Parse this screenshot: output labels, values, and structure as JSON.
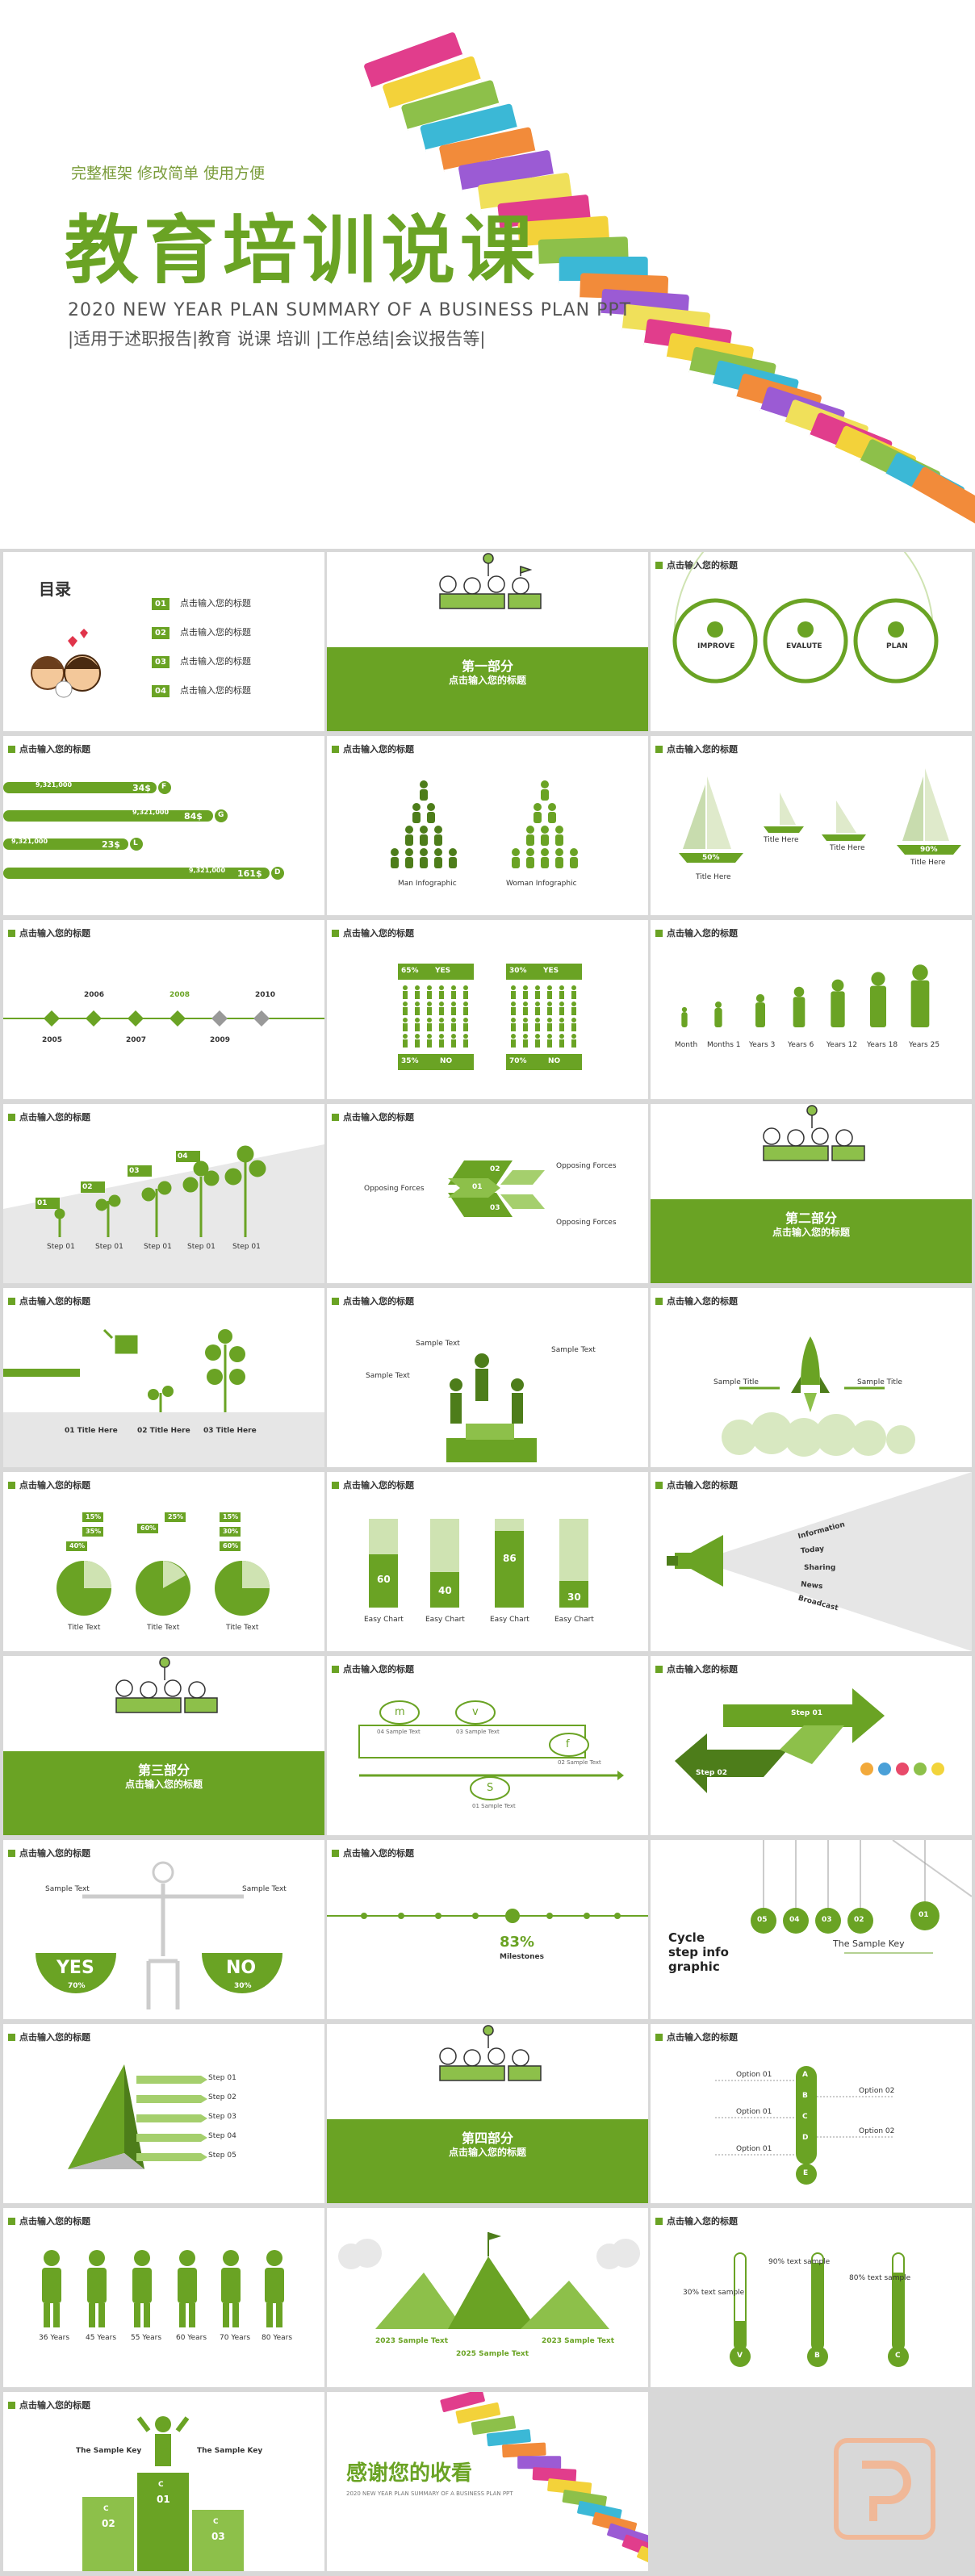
{
  "cover": {
    "tagline": "完整框架 修改简单 使用方便",
    "title": "教育培训说课",
    "subtitle_en": "2020 NEW YEAR PLAN SUMMARY OF A BUSINESS PLAN PPT",
    "subtitle_cn": "|适用于述职报告|教育 说课 培训 |工作总结|会议报告等|"
  },
  "common": {
    "slide_header": "点击输入您的标题",
    "section_sub": "点击输入您的标题"
  },
  "toc": {
    "title": "目录",
    "items": [
      {
        "num": "01",
        "label": "点击输入您的标题"
      },
      {
        "num": "02",
        "label": "点击输入您的标题"
      },
      {
        "num": "03",
        "label": "点击输入您的标题"
      },
      {
        "num": "04",
        "label": "点击输入您的标题"
      }
    ]
  },
  "sections": {
    "one": "第一部分",
    "two": "第二部分",
    "three": "第三部分",
    "four": "第四部分"
  },
  "circles": {
    "items": [
      "IMPROVE",
      "EVALUTE",
      "PLAN"
    ]
  },
  "bars": {
    "items": [
      {
        "value": "9,321,000",
        "sub": "Facebook Subscribes",
        "amount": "34$",
        "letter": "F"
      },
      {
        "value": "9,321,000",
        "sub": "Google Plus Subscribes",
        "amount": "84$",
        "letter": "G"
      },
      {
        "value": "9,321,000",
        "sub": "Twitter Subscribes",
        "amount": "23$",
        "letter": "L"
      },
      {
        "value": "9,321,000",
        "sub": "Dribbble Subscribes",
        "amount": "161$",
        "letter": "D"
      }
    ]
  },
  "people_infographic": {
    "man": "Man Infographic",
    "woman": "Woman Infographic"
  },
  "sails": {
    "percents": [
      "50%",
      "90%"
    ],
    "titles": [
      "Title Here",
      "Title Here",
      "Title Here",
      "Title Here"
    ]
  },
  "timeline": {
    "years_top": [
      "2006",
      "2008",
      "2010"
    ],
    "years_bottom": [
      "2005",
      "2007",
      "2009"
    ]
  },
  "percent_people": {
    "a_top": "65%",
    "a_yes": "YES",
    "a_bottom": "35%",
    "a_no": "NO",
    "b_top": "30%",
    "b_yes": "YES",
    "b_bottom": "70%",
    "b_no": "NO"
  },
  "growth": {
    "labels": [
      "Month",
      "Months 1",
      "Years 3",
      "Years 6",
      "Years 12",
      "Years 18",
      "Years 25"
    ]
  },
  "steps_trees": {
    "labels": [
      "Step 01",
      "Step 01",
      "Step 01",
      "Step 01",
      "Step 01"
    ],
    "tags": [
      "01",
      "02",
      "03",
      "04"
    ]
  },
  "arrows": {
    "left": "Opposing Forces",
    "r1": "Opposing Forces",
    "r2": "Opposing Forces",
    "n1": "01",
    "n2": "02",
    "n3": "03"
  },
  "watering": {
    "labels": [
      "01 Title Here",
      "02 Title Here",
      "03 Title Here"
    ]
  },
  "podium_people": {
    "labels": [
      "Sample Text",
      "Sample Text",
      "Sample Text"
    ]
  },
  "rocket": {
    "left": "Sample Title",
    "right": "Sample Title"
  },
  "pies": {
    "group1": [
      "15%",
      "35%",
      "40%"
    ],
    "group2": [
      "60%",
      "25%"
    ],
    "group3": [
      "15%",
      "30%",
      "60%"
    ],
    "title": "Title Text"
  },
  "columns": {
    "values": [
      "60",
      "40",
      "86",
      "30"
    ],
    "label": "Easy Chart"
  },
  "megaphone": {
    "items": [
      "Information",
      "Today",
      "Sharing",
      "News",
      "Broadcast"
    ]
  },
  "cycle_flow": {
    "nodes": [
      "m",
      "v",
      "f",
      "S"
    ],
    "labels": [
      "04 Sample Text",
      "03 Sample Text",
      "02 Sample Text",
      "01 Sample Text"
    ]
  },
  "big_arrows": {
    "step1": "Step 01",
    "step2": "Step 02"
  },
  "scale": {
    "left": "Sample Text",
    "right": "Sample Text",
    "yes": "YES",
    "no": "NO",
    "yes_pct": "70%",
    "no_pct": "30%"
  },
  "process_line": {
    "pct": "83%",
    "word": "Milestones"
  },
  "cycle_step": {
    "title": "Cycle step info graphic",
    "key": "The Sample Key",
    "nums": [
      "05",
      "04",
      "03",
      "02",
      "01"
    ]
  },
  "pyramid": {
    "steps": [
      "Step 01",
      "Step 02",
      "Step 03",
      "Step 04",
      "Step 05"
    ]
  },
  "abcde": {
    "letters": [
      "A",
      "B",
      "C",
      "D",
      "E"
    ],
    "options": [
      "Option 01",
      "Option 02",
      "Option 01",
      "Option 02",
      "Option 01"
    ]
  },
  "ages": {
    "labels": [
      "36 Years",
      "45 Years",
      "55 Years",
      "60 Years",
      "70 Years",
      "80 Years"
    ]
  },
  "mountains": {
    "labels": [
      "2023 Sample Text",
      "2025 Sample Text",
      "2023 Sample Text"
    ]
  },
  "thermo": {
    "labels": [
      "30% text sample",
      "90% text sample",
      "80% text sample"
    ],
    "letters": [
      "V",
      "B",
      "C"
    ]
  },
  "podium_key": {
    "left": "The Sample Key",
    "right": "The Sample Key",
    "mid": "01",
    "l": "02",
    "r": "03",
    "letters": [
      "C",
      "C",
      "C"
    ]
  },
  "thanks": {
    "title": "感谢您的收看",
    "en": "2020 NEW YEAR PLAN SUMMARY OF A BUSINESS PLAN PPT"
  }
}
